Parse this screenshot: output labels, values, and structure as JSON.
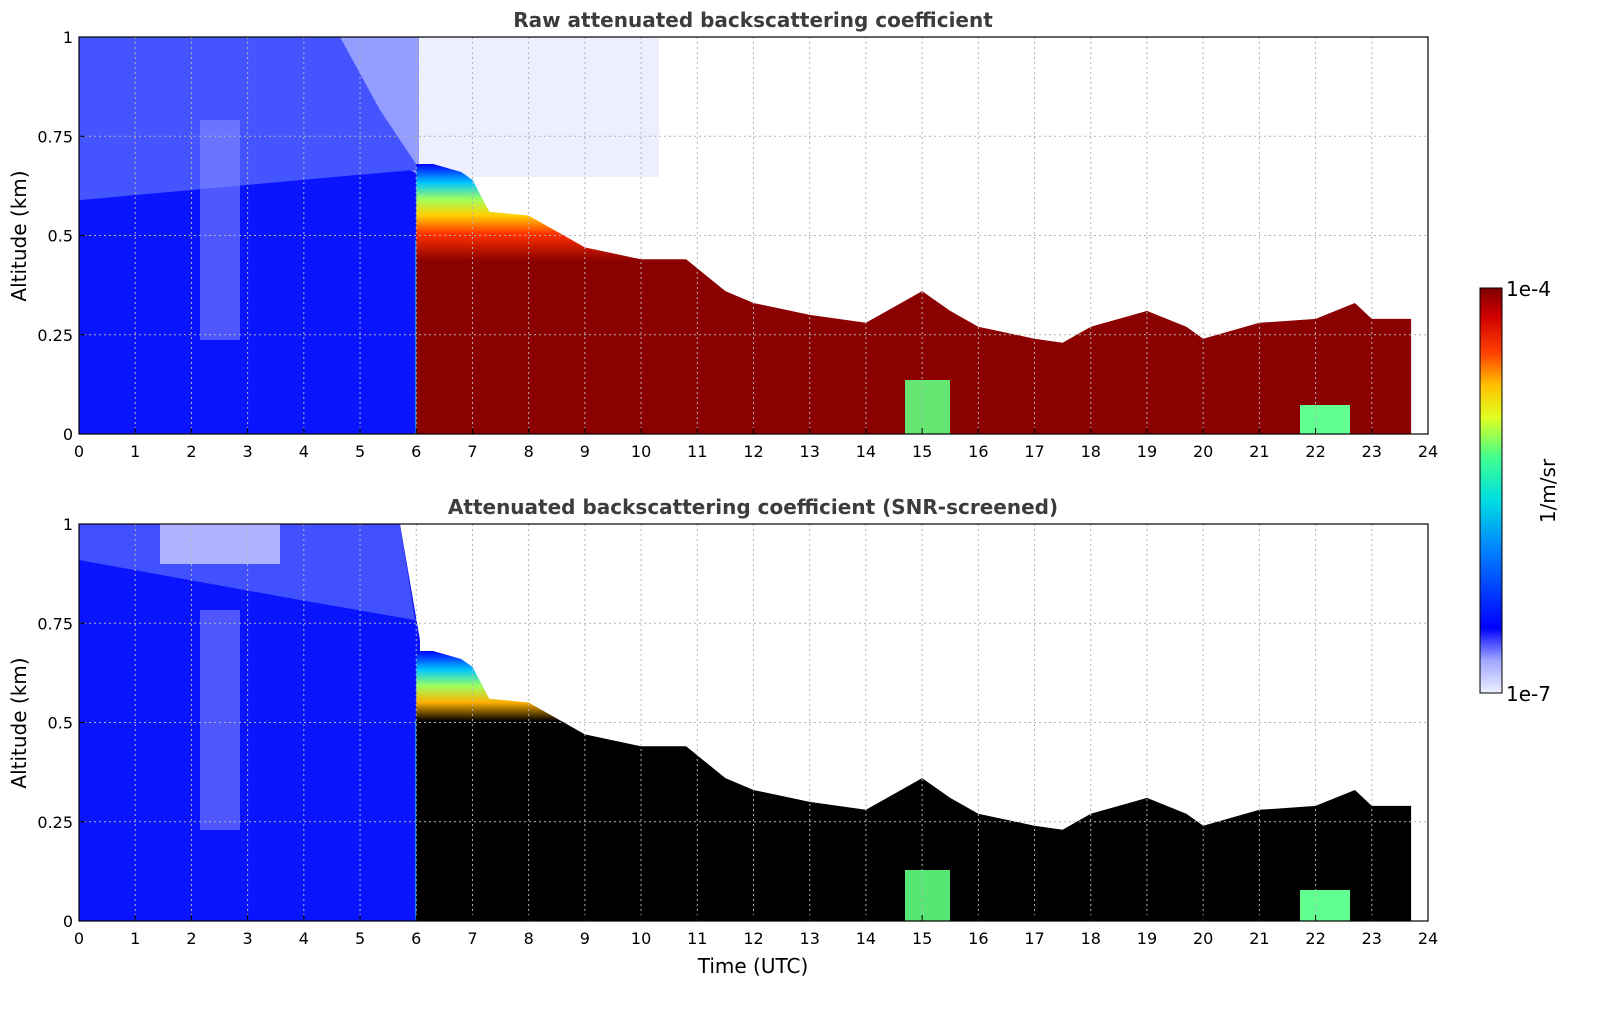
{
  "chart_data": [
    {
      "type": "heatmap",
      "title": "Raw attenuated backscattering coefficient",
      "xlabel": "",
      "ylabel": "Altitude (km)",
      "xlim": [
        0,
        24
      ],
      "ylim": [
        0,
        1
      ],
      "x_ticks": [
        "0",
        "1",
        "2",
        "3",
        "4",
        "5",
        "6",
        "7",
        "8",
        "9",
        "10",
        "11",
        "12",
        "13",
        "14",
        "15",
        "16",
        "17",
        "18",
        "19",
        "20",
        "21",
        "22",
        "23",
        "24"
      ],
      "y_ticks": [
        "0",
        "0.25",
        "0.5",
        "0.75",
        "1"
      ],
      "grid": true,
      "layer_top_km": {
        "time": [
          6.0,
          6.3,
          6.8,
          7.0,
          7.3,
          8.0,
          9.0,
          10.0,
          10.8,
          11.5,
          12.0,
          13.0,
          14.0,
          14.5,
          15.0,
          15.5,
          16.0,
          17.0,
          17.5,
          18.0,
          19.0,
          19.7,
          20.0,
          21.0,
          22.0,
          22.7,
          23.0,
          23.7
        ],
        "value": [
          0.68,
          0.68,
          0.66,
          0.64,
          0.56,
          0.55,
          0.47,
          0.44,
          0.44,
          0.36,
          0.33,
          0.3,
          0.28,
          0.32,
          0.36,
          0.31,
          0.27,
          0.24,
          0.23,
          0.27,
          0.31,
          0.27,
          0.24,
          0.28,
          0.29,
          0.33,
          0.29,
          0.29
        ]
      },
      "note_series": "backscatter field, data end near 23.7 UTC"
    },
    {
      "type": "heatmap",
      "title": "Attenuated backscattering coefficient (SNR-screened)",
      "xlabel": "Time (UTC)",
      "ylabel": "Altitude (km)",
      "xlim": [
        0,
        24
      ],
      "ylim": [
        0,
        1
      ],
      "x_ticks": [
        "0",
        "1",
        "2",
        "3",
        "4",
        "5",
        "6",
        "7",
        "8",
        "9",
        "10",
        "11",
        "12",
        "13",
        "14",
        "15",
        "16",
        "17",
        "18",
        "19",
        "20",
        "21",
        "22",
        "23",
        "24"
      ],
      "y_ticks": [
        "0",
        "0.25",
        "0.5",
        "0.75",
        "1"
      ],
      "grid": true
    }
  ],
  "colorbar": {
    "label": "1/m/sr",
    "max_label": "1e-4",
    "min_label": "1e-7",
    "colormap": "jet-like, light lavender at low end, dark red at high end"
  }
}
